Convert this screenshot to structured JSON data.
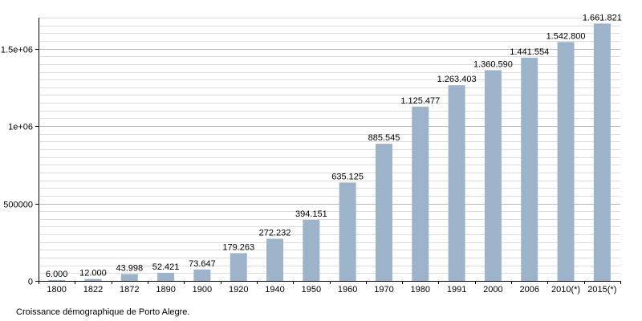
{
  "chart_data": {
    "type": "bar",
    "categories": [
      "1800",
      "1822",
      "1872",
      "1890",
      "1900",
      "1920",
      "1940",
      "1950",
      "1960",
      "1970",
      "1980",
      "1991",
      "2000",
      "2006",
      "2010(*)",
      "2015(*)"
    ],
    "values": [
      6000,
      12000,
      43998,
      52421,
      73647,
      179263,
      272232,
      394151,
      635125,
      885545,
      1125477,
      1263403,
      1360590,
      1441554,
      1542800,
      1661821
    ],
    "value_labels": [
      "6.000",
      "12.000",
      "43.998",
      "52.421",
      "73.647",
      "179.263",
      "272.232",
      "394.151",
      "635.125",
      "885.545",
      "1.125.477",
      "1.263.403",
      "1.360.590",
      "1.441.554",
      "1.542.800",
      "1.661.821"
    ],
    "yticks": [
      0,
      500000,
      1000000,
      1500000
    ],
    "ytick_labels": [
      "0",
      "500000",
      "1e+06",
      "1.5e+06"
    ],
    "ylim": [
      0,
      1700000
    ],
    "minor_grid_step": 50000,
    "grid": true,
    "title": "",
    "xlabel": "",
    "ylabel": "",
    "bar_color": "#9db3c9"
  },
  "caption": "Croissance démographique de Porto Alegre."
}
